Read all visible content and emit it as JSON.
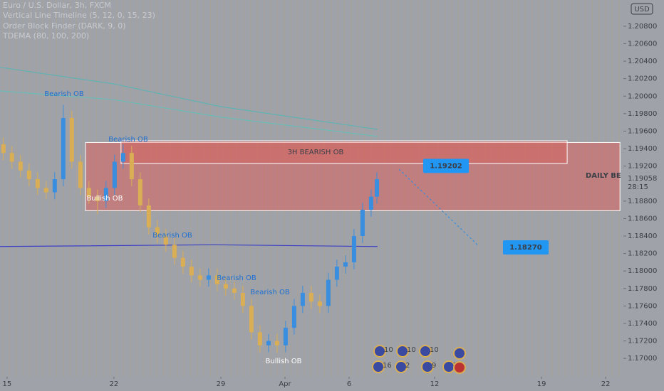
{
  "chart_data": {
    "type": "candlestick",
    "legend_lines": [
      "Euro / U.S. Dollar, 3h, FXCM",
      "Vertical Line Timeline (5, 12, 0, 15, 23)",
      "Order Block Finder (DARK, 9, 0)",
      "TDEMA (80, 100, 200)"
    ],
    "currency": "USD",
    "x": [
      -0.17,
      0.23,
      0.63,
      1.03,
      1.43,
      1.83,
      2.23,
      2.63,
      3.03,
      3.43,
      3.83,
      4.23,
      4.63,
      5.03,
      5.43,
      5.83,
      6.23,
      6.63,
      7.03,
      7.43,
      7.83,
      8.23,
      8.63,
      9.03,
      9.43,
      9.83,
      10.23,
      10.63,
      11.03,
      11.43,
      11.83,
      12.23,
      12.63,
      13.03,
      13.43,
      13.83,
      14.23,
      14.63,
      15.03,
      15.43,
      15.83,
      16.23,
      16.63,
      17.03,
      17.3
    ],
    "open": [
      1.1945,
      1.1935,
      1.1925,
      1.1915,
      1.1905,
      1.1895,
      1.189,
      1.1905,
      1.1975,
      1.1925,
      1.1895,
      1.1885,
      1.188,
      1.1895,
      1.1925,
      1.1935,
      1.1905,
      1.1875,
      1.185,
      1.184,
      1.183,
      1.1815,
      1.1805,
      1.1795,
      1.179,
      1.1795,
      1.1785,
      1.178,
      1.1775,
      1.176,
      1.173,
      1.1715,
      1.172,
      1.1715,
      1.1735,
      1.176,
      1.1775,
      1.1765,
      1.176,
      1.179,
      1.1805,
      1.181,
      1.184,
      1.187,
      1.1885
    ],
    "high": [
      1.1953,
      1.1943,
      1.1933,
      1.1923,
      1.1913,
      1.1903,
      1.1913,
      1.199,
      1.1983,
      1.1933,
      1.1903,
      1.1893,
      1.1903,
      1.1933,
      1.1945,
      1.1943,
      1.1913,
      1.1883,
      1.1858,
      1.1848,
      1.1838,
      1.1823,
      1.1813,
      1.1803,
      1.1803,
      1.1803,
      1.1793,
      1.1788,
      1.1783,
      1.1768,
      1.1738,
      1.1728,
      1.1728,
      1.1743,
      1.1768,
      1.1783,
      1.1783,
      1.1773,
      1.1798,
      1.1813,
      1.1818,
      1.1848,
      1.1878,
      1.1893,
      1.1913
    ],
    "low": [
      1.1927,
      1.1917,
      1.1907,
      1.1897,
      1.1887,
      1.1882,
      1.1882,
      1.1897,
      1.1917,
      1.1887,
      1.1877,
      1.1865,
      1.1872,
      1.1887,
      1.1917,
      1.1897,
      1.1867,
      1.1842,
      1.1832,
      1.1822,
      1.1807,
      1.1797,
      1.1787,
      1.1782,
      1.1782,
      1.1777,
      1.1772,
      1.1767,
      1.1752,
      1.1722,
      1.1707,
      1.1707,
      1.1707,
      1.1707,
      1.1727,
      1.1752,
      1.1757,
      1.1752,
      1.1752,
      1.1782,
      1.1797,
      1.1802,
      1.1832,
      1.1862,
      1.1877
    ],
    "close": [
      1.1935,
      1.1925,
      1.1915,
      1.1905,
      1.1895,
      1.189,
      1.1905,
      1.1975,
      1.1925,
      1.1895,
      1.1885,
      1.188,
      1.1895,
      1.1925,
      1.1935,
      1.1905,
      1.1875,
      1.185,
      1.184,
      1.183,
      1.1815,
      1.1805,
      1.1795,
      1.179,
      1.1795,
      1.1785,
      1.178,
      1.1775,
      1.176,
      1.173,
      1.1715,
      1.172,
      1.1715,
      1.1735,
      1.176,
      1.1775,
      1.1765,
      1.176,
      1.179,
      1.1805,
      1.181,
      1.184,
      1.187,
      1.1885,
      1.1905
    ],
    "up_color": "#3a8ee0",
    "down_color": "#d9ae55",
    "lines": [
      {
        "color": "#5fb3b3",
        "x": [
          -0.33,
          5,
          10,
          17.33
        ],
        "values": [
          1.2033,
          1.2014,
          1.1988,
          1.1962
        ]
      },
      {
        "color": "#6cbcb8",
        "x": [
          -0.33,
          5,
          10,
          17.33
        ],
        "values": [
          1.2006,
          1.1996,
          1.1976,
          1.1954
        ]
      },
      {
        "color": "#3a3fc4",
        "x": [
          -0.33,
          9.67,
          17.33
        ],
        "values": [
          1.1828,
          1.183,
          1.1828
        ]
      }
    ],
    "zones": [
      {
        "label": "DAILY BE",
        "x": [
          3.67,
          28.67
        ],
        "top": 1.1947,
        "bottom": 1.1869,
        "color": "#e05a55"
      },
      {
        "label": "3H BEARISH OB",
        "x": [
          5.33,
          26.2
        ],
        "top": 1.1949,
        "bottom": 1.1923,
        "color": "#e05a55"
      }
    ],
    "targets": [
      1.19202,
      {
        "value": 1.1827,
        "label": "1.18270"
      }
    ],
    "last_price": 1.19058,
    "countdown": "28:15",
    "annotations": [
      "Bearish OB",
      "Bearish OB",
      "Bearish OB",
      "Bearish OB",
      "Bearish OB",
      "Bullish OB",
      "Bullish OB"
    ],
    "events": [
      "10",
      "10",
      "10",
      "16",
      "2",
      "9",
      "2"
    ],
    "xlim": [
      -0.33,
      28.83
    ],
    "ylim": [
      1.1679,
      1.211
    ],
    "xticks": [
      {
        "value": 0,
        "label": "15"
      },
      {
        "value": 5,
        "label": "22"
      },
      {
        "value": 10,
        "label": "29"
      },
      {
        "value": 13,
        "label": "Apr"
      },
      {
        "value": 16,
        "label": "6"
      },
      {
        "value": 20,
        "label": "12"
      },
      {
        "value": 25,
        "label": "19"
      },
      {
        "value": 28,
        "label": "22"
      }
    ],
    "yticks": [
      {
        "value": 1.17,
        "label": "1.17000"
      },
      {
        "value": 1.172,
        "label": "1.17200"
      },
      {
        "value": 1.174,
        "label": "1.17400"
      },
      {
        "value": 1.176,
        "label": "1.17600"
      },
      {
        "value": 1.178,
        "label": "1.17800"
      },
      {
        "value": 1.18,
        "label": "1.18000"
      },
      {
        "value": 1.182,
        "label": "1.18200"
      },
      {
        "value": 1.184,
        "label": "1.18400"
      },
      {
        "value": 1.186,
        "label": "1.18600"
      },
      {
        "value": 1.188,
        "label": "1.18800"
      },
      {
        "value": 1.19,
        "label": "1.19000"
      },
      {
        "value": 1.192,
        "label": "1.19200"
      },
      {
        "value": 1.194,
        "label": "1.19400"
      },
      {
        "value": 1.196,
        "label": "1.19600"
      },
      {
        "value": 1.198,
        "label": "1.19800"
      },
      {
        "value": 1.2,
        "label": "1.20000"
      },
      {
        "value": 1.202,
        "label": "1.20200"
      },
      {
        "value": 1.204,
        "label": "1.20400"
      },
      {
        "value": 1.206,
        "label": "1.20600"
      },
      {
        "value": 1.208,
        "label": "1.20800"
      }
    ]
  }
}
